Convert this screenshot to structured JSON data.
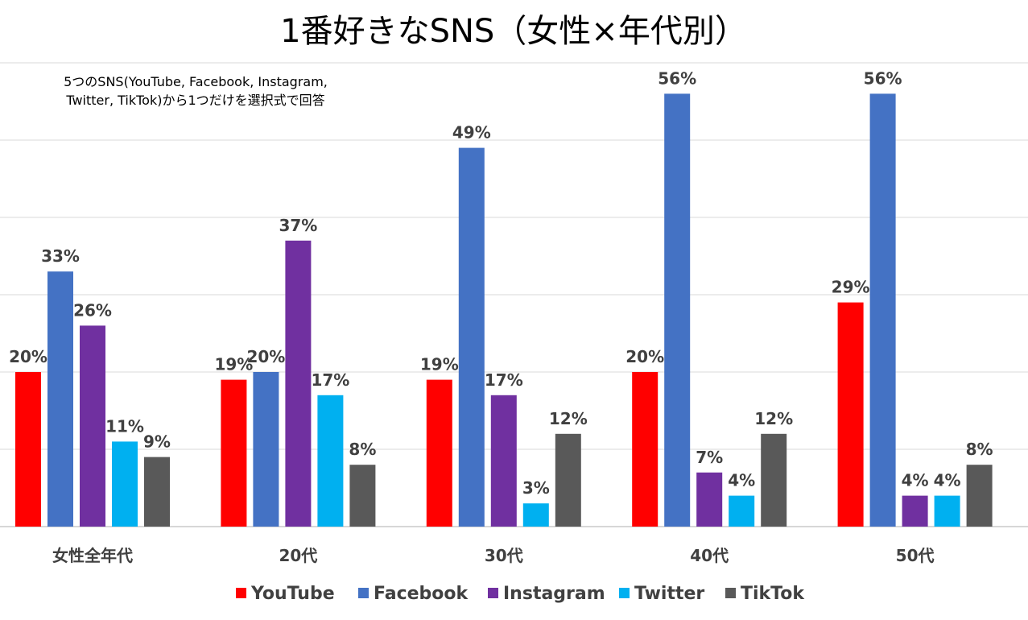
{
  "chart_data": {
    "type": "bar",
    "title": "1番好きなSNS（女性×年代別）",
    "note_lines": [
      "5つのSNS(YouTube, Facebook, Instagram,",
      "Twitter, TikTok)から1つだけを選択式で回答"
    ],
    "categories": [
      "女性全年代",
      "20代",
      "30代",
      "40代",
      "50代"
    ],
    "series": [
      {
        "name": "YouTube",
        "color": "#ff0000",
        "values": [
          20,
          19,
          19,
          20,
          29
        ]
      },
      {
        "name": "Facebook",
        "color": "#4472c4",
        "values": [
          33,
          20,
          49,
          56,
          56
        ]
      },
      {
        "name": "Instagram",
        "color": "#7030a0",
        "values": [
          26,
          37,
          17,
          7,
          4
        ]
      },
      {
        "name": "Twitter",
        "color": "#00b0f0",
        "values": [
          11,
          17,
          3,
          4,
          4
        ]
      },
      {
        "name": "TikTok",
        "color": "#595959",
        "values": [
          9,
          8,
          12,
          12,
          8
        ]
      }
    ],
    "value_suffix": "%",
    "ylim": [
      0,
      60
    ],
    "grid": true,
    "legend": "bottom"
  }
}
